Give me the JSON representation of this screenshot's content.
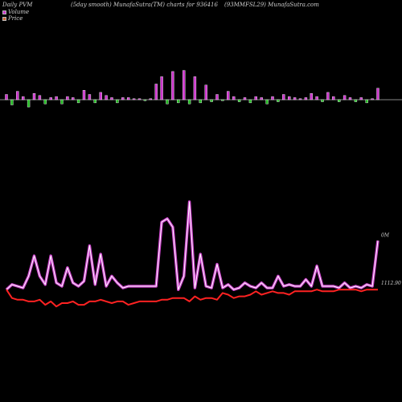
{
  "header": {
    "left": "Daily PVM",
    "center1": "(5day smooth) MunafaSutra(TM) charts for 936416",
    "center2": "(93MMFSL29) MunafaSutra.com"
  },
  "legend": {
    "volume_label": "Volume",
    "price_label": "Price"
  },
  "labels": {
    "volume_tag": "0M",
    "price_tag": "1112.90"
  },
  "colors": {
    "background": "#000000",
    "volume_up": "#cc33cc",
    "volume_down": "#22bb22",
    "volume_baseline": "#888888",
    "price_line": "#ff2222",
    "pvm_line": "#cc44cc",
    "pvm_glow": "#ffffff"
  },
  "chart_data": {
    "type": "line",
    "series": [
      {
        "name": "Volume",
        "type": "bar",
        "values": [
          5,
          -5,
          8,
          3,
          -7,
          6,
          4,
          -4,
          2,
          3,
          -4,
          3,
          2,
          -3,
          9,
          5,
          -3,
          7,
          4,
          2,
          -3,
          2,
          2,
          1,
          1,
          -1,
          1,
          15,
          22,
          -4,
          27,
          -3,
          28,
          -4,
          22,
          -3,
          14,
          -2,
          5,
          -1,
          8,
          3,
          -2,
          2,
          -3,
          3,
          2,
          -4,
          3,
          -2,
          5,
          3,
          2,
          1,
          2,
          6,
          3,
          -2,
          7,
          3,
          -2,
          4,
          2,
          -2,
          2,
          -3,
          1,
          11
        ],
        "volume_tag": "0M"
      },
      {
        "name": "PVM",
        "type": "line",
        "values": [
          38,
          41,
          40,
          39,
          46,
          58,
          46,
          41,
          58,
          42,
          40,
          51,
          42,
          40,
          43,
          64,
          41,
          59,
          40,
          46,
          42,
          39,
          40,
          40,
          40,
          40,
          40,
          40,
          78,
          80,
          75,
          38,
          46,
          90,
          39,
          59,
          40,
          39,
          53,
          39,
          41,
          38,
          39,
          42,
          40,
          39,
          42,
          39,
          39,
          46,
          40,
          41,
          40,
          40,
          44,
          40,
          52,
          40,
          40,
          40,
          39,
          42,
          39,
          40,
          39,
          41,
          40,
          67
        ]
      },
      {
        "name": "Price",
        "type": "line",
        "values": [
          38,
          33,
          32,
          32,
          31,
          31,
          32,
          29,
          31,
          28,
          30,
          30,
          31,
          29,
          29,
          31,
          31,
          32,
          31,
          30,
          31,
          31,
          29,
          30,
          31,
          31,
          31,
          31,
          32,
          32,
          33,
          33,
          33,
          31,
          34,
          32,
          33,
          33,
          32,
          36,
          35,
          33,
          34,
          34,
          35,
          37,
          35,
          36,
          37,
          36,
          36,
          35,
          37,
          37,
          37,
          37,
          38,
          37,
          37,
          37,
          38,
          38,
          38,
          38,
          37,
          38,
          38,
          38
        ],
        "price_tag": "1112.90"
      }
    ]
  }
}
